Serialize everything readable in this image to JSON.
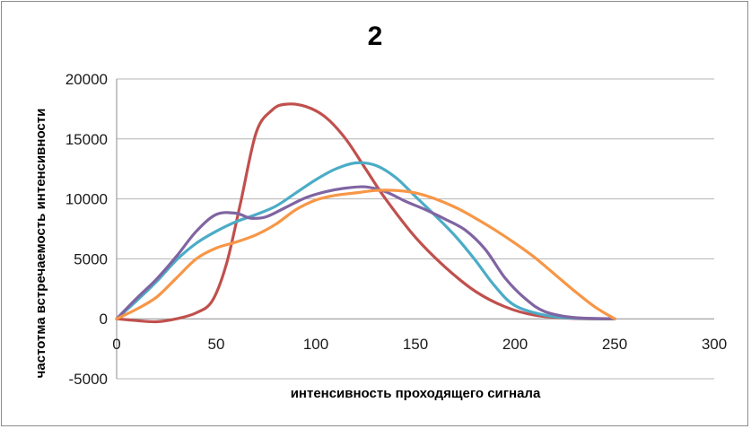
{
  "chart_data": {
    "type": "line",
    "title": "2",
    "xlabel": "интенсивность проходящего сигнала",
    "ylabel": "частотма встречаемость интенсивности",
    "xlim": [
      0,
      300
    ],
    "ylim": [
      -5000,
      20000
    ],
    "x_ticks": [
      0,
      50,
      100,
      150,
      200,
      250,
      300
    ],
    "y_ticks": [
      -5000,
      0,
      5000,
      10000,
      15000,
      20000
    ],
    "grid": "horizontal",
    "legend": "none",
    "series": [
      {
        "color": "#c0504d",
        "points": [
          [
            0,
            0
          ],
          [
            10,
            -150
          ],
          [
            20,
            -250
          ],
          [
            30,
            0
          ],
          [
            40,
            500
          ],
          [
            48,
            1500
          ],
          [
            55,
            4500
          ],
          [
            62,
            9500
          ],
          [
            70,
            15500
          ],
          [
            78,
            17400
          ],
          [
            85,
            17900
          ],
          [
            95,
            17700
          ],
          [
            105,
            16800
          ],
          [
            115,
            15000
          ],
          [
            125,
            12500
          ],
          [
            135,
            10000
          ],
          [
            150,
            6800
          ],
          [
            165,
            4300
          ],
          [
            180,
            2300
          ],
          [
            195,
            1000
          ],
          [
            210,
            300
          ],
          [
            230,
            20
          ],
          [
            250,
            0
          ]
        ]
      },
      {
        "color": "#4bacc6",
        "points": [
          [
            0,
            0
          ],
          [
            10,
            1500
          ],
          [
            20,
            3100
          ],
          [
            30,
            4900
          ],
          [
            40,
            6300
          ],
          [
            50,
            7300
          ],
          [
            60,
            8100
          ],
          [
            70,
            8700
          ],
          [
            80,
            9400
          ],
          [
            90,
            10500
          ],
          [
            100,
            11600
          ],
          [
            110,
            12500
          ],
          [
            120,
            13000
          ],
          [
            130,
            12800
          ],
          [
            140,
            11800
          ],
          [
            150,
            10200
          ],
          [
            160,
            8600
          ],
          [
            170,
            6900
          ],
          [
            180,
            4900
          ],
          [
            190,
            2700
          ],
          [
            200,
            1100
          ],
          [
            215,
            300
          ],
          [
            230,
            50
          ],
          [
            250,
            0
          ]
        ]
      },
      {
        "color": "#8064a2",
        "points": [
          [
            0,
            0
          ],
          [
            10,
            1700
          ],
          [
            20,
            3300
          ],
          [
            30,
            5200
          ],
          [
            40,
            7300
          ],
          [
            50,
            8700
          ],
          [
            60,
            8800
          ],
          [
            67,
            8400
          ],
          [
            75,
            8500
          ],
          [
            85,
            9300
          ],
          [
            95,
            10100
          ],
          [
            105,
            10600
          ],
          [
            115,
            10900
          ],
          [
            125,
            11000
          ],
          [
            135,
            10600
          ],
          [
            145,
            9800
          ],
          [
            155,
            9100
          ],
          [
            165,
            8300
          ],
          [
            175,
            7400
          ],
          [
            185,
            5800
          ],
          [
            195,
            3400
          ],
          [
            205,
            1700
          ],
          [
            215,
            600
          ],
          [
            230,
            100
          ],
          [
            250,
            0
          ]
        ]
      },
      {
        "color": "#f79646",
        "points": [
          [
            0,
            0
          ],
          [
            10,
            800
          ],
          [
            20,
            1800
          ],
          [
            30,
            3400
          ],
          [
            40,
            5000
          ],
          [
            50,
            5900
          ],
          [
            60,
            6400
          ],
          [
            70,
            7000
          ],
          [
            80,
            7900
          ],
          [
            90,
            9100
          ],
          [
            100,
            9900
          ],
          [
            110,
            10300
          ],
          [
            120,
            10500
          ],
          [
            130,
            10700
          ],
          [
            140,
            10700
          ],
          [
            150,
            10500
          ],
          [
            160,
            10000
          ],
          [
            170,
            9300
          ],
          [
            180,
            8400
          ],
          [
            190,
            7400
          ],
          [
            200,
            6300
          ],
          [
            210,
            5100
          ],
          [
            220,
            3700
          ],
          [
            230,
            2300
          ],
          [
            240,
            1000
          ],
          [
            250,
            0
          ]
        ]
      }
    ]
  }
}
